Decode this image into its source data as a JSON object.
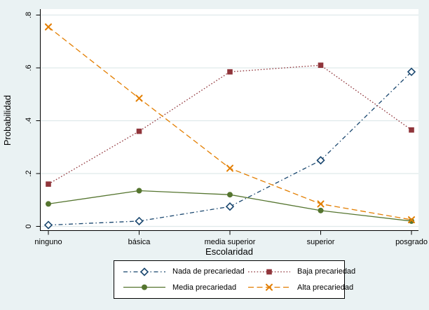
{
  "figure": {
    "kind": "stata-line-plot"
  },
  "colors": {
    "background": "#eaf2f3",
    "plot_background": "#ffffff",
    "grid": "#dfe9eb",
    "axis": "#000000",
    "text": "#000000",
    "legend_background": "#ffffff",
    "legend_border": "#000000"
  },
  "chart_data": {
    "type": "line",
    "title": "",
    "xlabel": "Escolaridad",
    "ylabel": "Probabilidad",
    "categories": [
      "ninguno",
      "básica",
      "media superior",
      "superior",
      "posgrado"
    ],
    "ylim": [
      0,
      0.8
    ],
    "yticks": [
      {
        "value": 0,
        "label": "0"
      },
      {
        "value": 0.2,
        "label": ".2"
      },
      {
        "value": 0.4,
        "label": ".4"
      },
      {
        "value": 0.6,
        "label": ".6"
      },
      {
        "value": 0.8,
        "label": ".8"
      }
    ],
    "grid": true,
    "legend_position": "bottom",
    "series": [
      {
        "name": "Nada de precariedad",
        "values": [
          0.005,
          0.02,
          0.075,
          0.25,
          0.585
        ],
        "color": "#1a476f",
        "line_style": "dash-dot",
        "marker": "diamond-hollow"
      },
      {
        "name": "Baja precariedad",
        "values": [
          0.16,
          0.36,
          0.585,
          0.61,
          0.365
        ],
        "color": "#90353b",
        "line_style": "dotted",
        "marker": "square"
      },
      {
        "name": "Media precariedad",
        "values": [
          0.085,
          0.135,
          0.12,
          0.06,
          0.02
        ],
        "color": "#55752f",
        "line_style": "solid",
        "marker": "circle"
      },
      {
        "name": "Alta precariedad",
        "values": [
          0.755,
          0.485,
          0.22,
          0.085,
          0.025
        ],
        "color": "#e37e00",
        "line_style": "dashed",
        "marker": "x"
      }
    ]
  }
}
